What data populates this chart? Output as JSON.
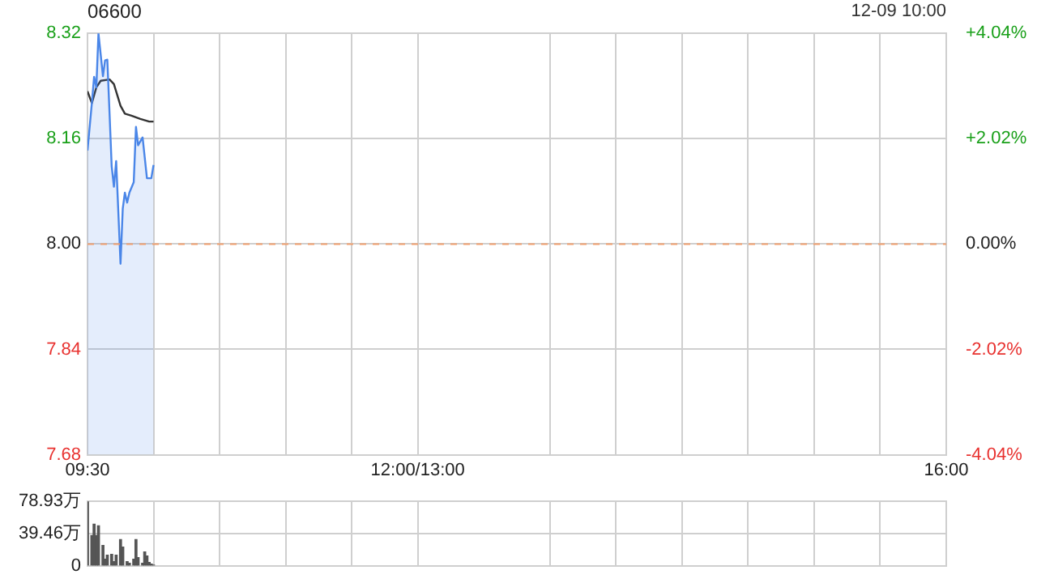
{
  "chart_data": [
    {
      "type": "line",
      "title": "06600",
      "annotations": [
        "12-09 10:00"
      ],
      "xlim": [
        9.5,
        16
      ],
      "xticks": [
        {
          "value": 9.5,
          "label": "09:30"
        },
        {
          "value": 10,
          "label": null
        },
        {
          "value": 10.5,
          "label": null
        },
        {
          "value": 11,
          "label": null
        },
        {
          "value": 11.5,
          "label": null
        },
        {
          "value": 12,
          "label": "12:00/13:00"
        },
        {
          "value": 13,
          "label": null
        },
        {
          "value": 13.5,
          "label": null
        },
        {
          "value": 14,
          "label": null
        },
        {
          "value": 14.5,
          "label": null
        },
        {
          "value": 15,
          "label": null
        },
        {
          "value": 15.5,
          "label": null
        },
        {
          "value": 16,
          "label": "16:00"
        }
      ],
      "ylim": [
        7.68,
        8.32
      ],
      "yticks": [
        7.68,
        7.84,
        {
          "value": 8,
          "label": "8.00"
        },
        8.16,
        8.32
      ],
      "y2lim": [
        -4.04,
        4.04
      ],
      "y2ticks": [
        {
          "value": -4.04,
          "label": "-4.04%"
        },
        {
          "value": -2.02,
          "label": "-2.02%"
        },
        {
          "value": 0,
          "label": "0.00%"
        },
        {
          "value": 2.02,
          "label": "+2.02%"
        },
        {
          "value": 4.04,
          "label": "+4.04%"
        }
      ],
      "grid": true,
      "ref_lines": [
        {
          "axis": "y",
          "value": 8,
          "color": "#f0a070",
          "line_style": "dashed"
        }
      ],
      "series": [
        {
          "type": "area",
          "color": "#4a86e8",
          "x": [
            9.5,
            9.533,
            9.55,
            9.567,
            9.583,
            9.617,
            9.633,
            9.65,
            9.667,
            9.683,
            9.7,
            9.717,
            9.75,
            9.767,
            9.783,
            9.8,
            9.817,
            9.85,
            9.867,
            9.883,
            9.917,
            9.95,
            9.983,
            10
          ],
          "values": [
            8.142,
            8.214,
            8.254,
            8.238,
            8.32,
            8.255,
            8.279,
            8.28,
            8.198,
            8.118,
            8.087,
            8.126,
            7.97,
            8.054,
            8.078,
            8.063,
            8.078,
            8.094,
            8.178,
            8.15,
            8.162,
            8.1,
            8.1,
            8.12
          ]
        },
        {
          "color": "#333333",
          "x": [
            9.5,
            9.533,
            9.567,
            9.6,
            9.667,
            9.7,
            9.75,
            9.783,
            9.833,
            9.9,
            9.967,
            10
          ],
          "values": [
            8.232,
            8.214,
            8.238,
            8.248,
            8.25,
            8.243,
            8.21,
            8.198,
            8.195,
            8.19,
            8.186,
            8.186
          ]
        }
      ]
    },
    {
      "type": "bar",
      "tick_labels": "y",
      "grid": true,
      "xlim": [
        9.5,
        16
      ],
      "xticks": [
        {
          "value": 9.5,
          "label": null
        },
        {
          "value": 10,
          "label": null
        },
        {
          "value": 10.5,
          "label": null
        },
        {
          "value": 11,
          "label": null
        },
        {
          "value": 11.5,
          "label": null
        },
        {
          "value": 12,
          "label": null
        },
        {
          "value": 13,
          "label": null
        },
        {
          "value": 13.5,
          "label": null
        },
        {
          "value": 14,
          "label": null
        },
        {
          "value": 14.5,
          "label": null
        },
        {
          "value": 15,
          "label": null
        },
        {
          "value": 15.5,
          "label": null
        },
        {
          "value": 16,
          "label": null
        }
      ],
      "ylim": [
        0,
        78.93
      ],
      "yticks": [
        0,
        {
          "value": 39.46,
          "label": "39.46万"
        },
        {
          "value": 78.93,
          "label": "78.93万"
        }
      ],
      "series": [
        {
          "color": "#555555",
          "x": [
            9.5,
            9.533,
            9.55,
            9.567,
            9.583,
            9.617,
            9.633,
            9.65,
            9.683,
            9.7,
            9.717,
            9.75,
            9.767,
            9.8,
            9.817,
            9.85,
            9.867,
            9.883,
            9.917,
            9.933,
            9.95,
            9.967,
            9.983,
            10
          ],
          "values": [
            78.9,
            37,
            51,
            37,
            49,
            25,
            8,
            13,
            14,
            5,
            13,
            32,
            23,
            5,
            3,
            8,
            32,
            10,
            3,
            17,
            12,
            4,
            2,
            1
          ]
        }
      ]
    }
  ]
}
